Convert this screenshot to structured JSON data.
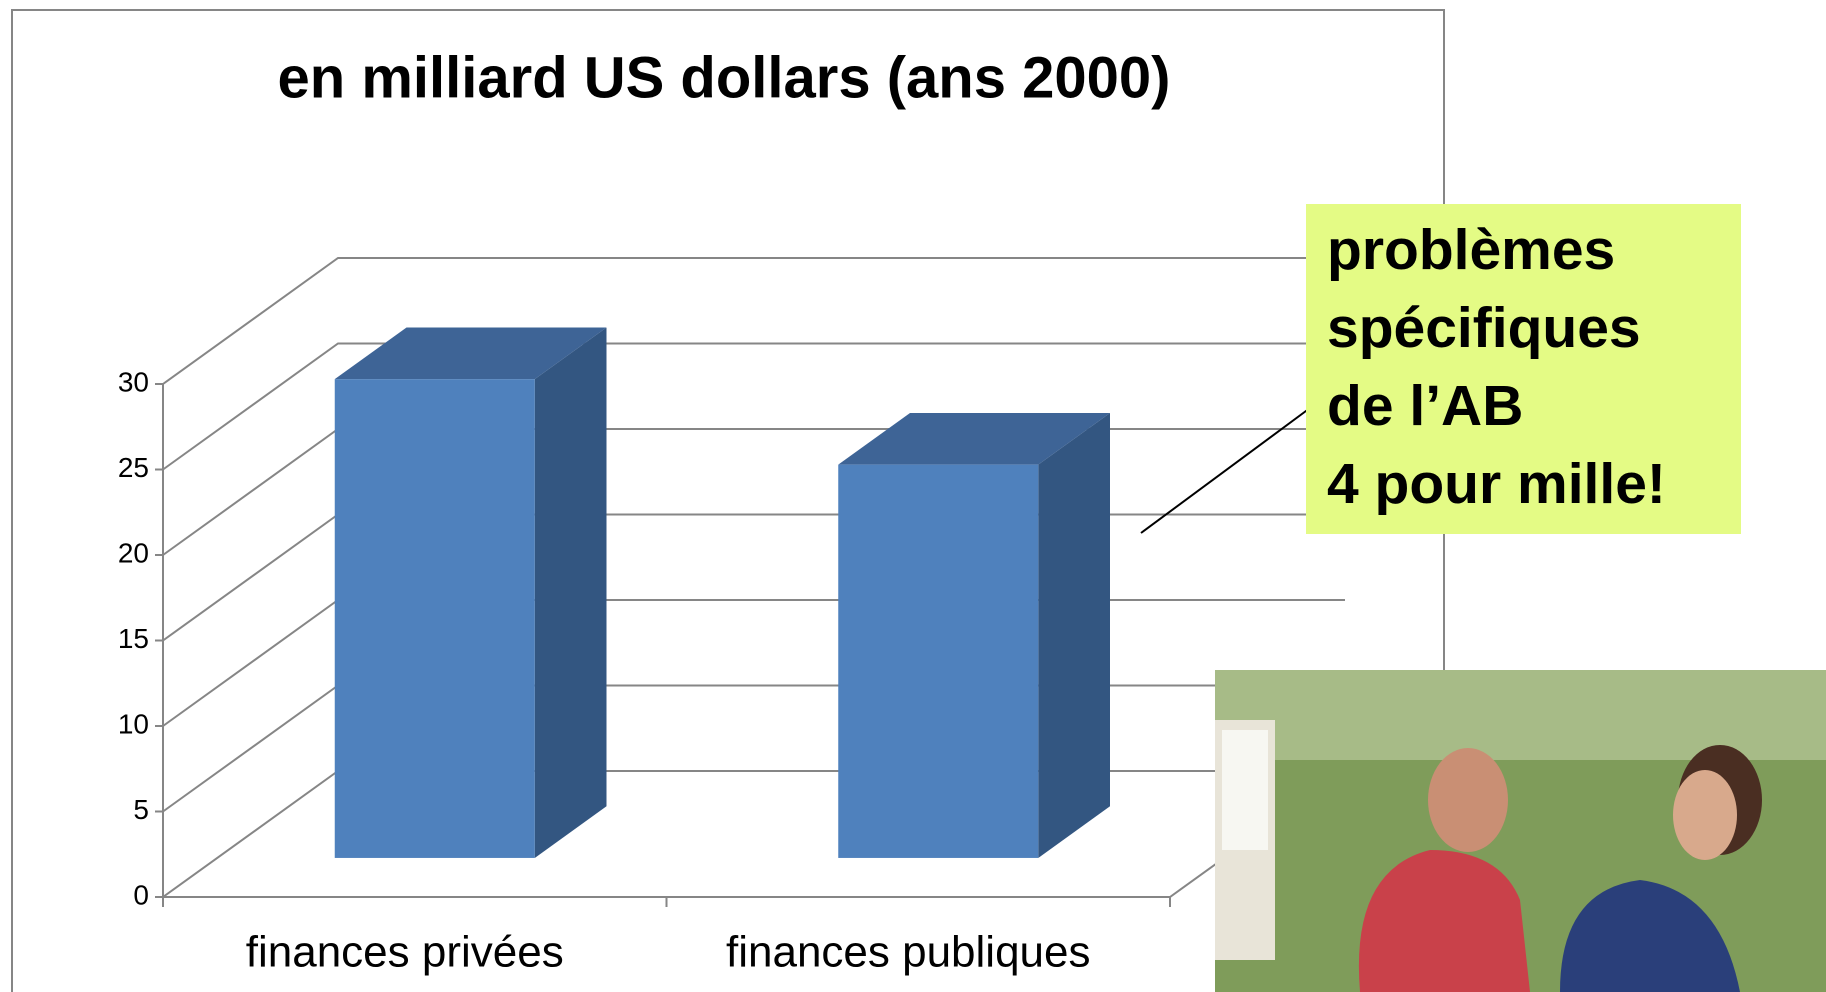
{
  "chart_data": {
    "type": "bar3d",
    "title": "en milliard US dollars (ans 2000)",
    "categories": [
      "finances privées",
      "finances publiques"
    ],
    "values": [
      28,
      23
    ],
    "color": "#4f81bd",
    "ylim": [
      0,
      30
    ],
    "yticks": [
      0,
      5,
      10,
      15,
      20,
      25,
      30
    ],
    "grid": true,
    "annotation": [
      "problèmes",
      "spécifiques",
      "de l’AB",
      "4 pour mille!"
    ]
  }
}
